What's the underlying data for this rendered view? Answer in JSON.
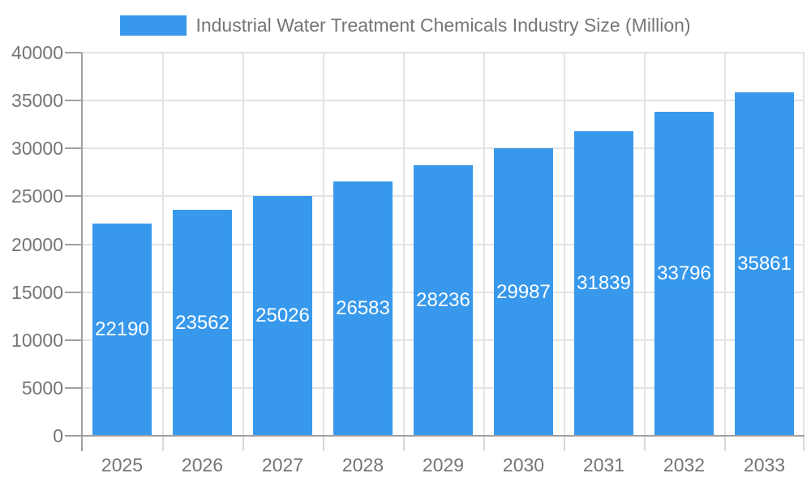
{
  "chart_data": {
    "type": "bar",
    "title": "Industrial Water Treatment Chemicals Industry Size (Million)",
    "categories": [
      "2025",
      "2026",
      "2027",
      "2028",
      "2029",
      "2030",
      "2031",
      "2032",
      "2033"
    ],
    "values": [
      22190,
      23562,
      25026,
      26583,
      28236,
      29987,
      31839,
      33796,
      35861
    ],
    "xlabel": "",
    "ylabel": "",
    "ylim": [
      0,
      40000
    ],
    "ytick_step": 5000,
    "ytick_labels": [
      "0",
      "5000",
      "10000",
      "15000",
      "20000",
      "25000",
      "30000",
      "35000",
      "40000"
    ],
    "grid": true,
    "legend_position": "top",
    "value_labels": "inside-center"
  },
  "colors": {
    "bar": "#3899EC",
    "value_label_text": "#FFFFFF",
    "axis_text": "#757575",
    "axis_line": "#A0A0A0",
    "gridline": "#E3E3E3",
    "minor_tick": "#D9D9D9",
    "background": "#FFFFFF"
  }
}
